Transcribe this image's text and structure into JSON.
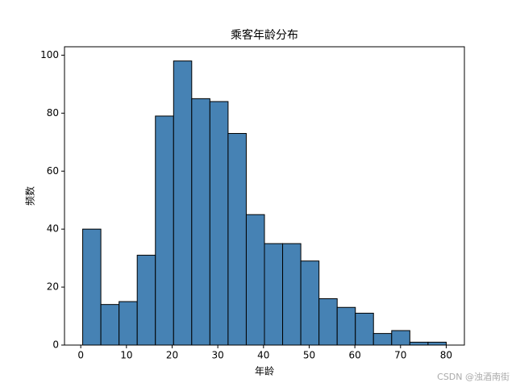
{
  "chart_data": {
    "type": "histogram",
    "title": "乘客年龄分布",
    "x_label": "年龄",
    "y_label": "频数",
    "bins": [
      0.42,
      4.4,
      8.38,
      12.36,
      16.34,
      20.32,
      24.29,
      28.27,
      32.25,
      36.23,
      40.21,
      44.19,
      48.17,
      52.15,
      56.13,
      60.11,
      64.08,
      68.06,
      72.04,
      76.02,
      80.0
    ],
    "counts": [
      40,
      14,
      15,
      31,
      79,
      98,
      85,
      84,
      73,
      45,
      35,
      35,
      29,
      16,
      13,
      11,
      4,
      5,
      1,
      1
    ],
    "color": "#4682b4",
    "edgecolor": "#000000",
    "xlim": [
      -3.56,
      83.98
    ],
    "ylim": [
      0,
      102.9
    ],
    "xticks": [
      0,
      10,
      20,
      30,
      40,
      50,
      60,
      70,
      80
    ],
    "yticks": [
      0,
      20,
      40,
      60,
      80,
      100
    ]
  },
  "watermark": "CSDN @浊酒南街"
}
